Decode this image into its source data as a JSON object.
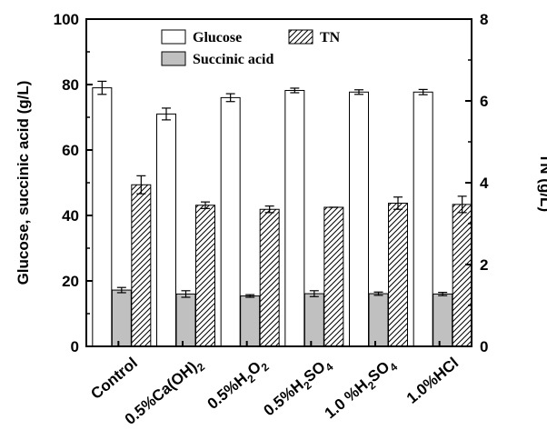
{
  "chart_data": {
    "type": "bar",
    "categories": [
      {
        "parts": [
          {
            "t": "Control"
          }
        ]
      },
      {
        "parts": [
          {
            "t": "0.5%Ca(OH)"
          },
          {
            "t": "2",
            "sub": true
          }
        ]
      },
      {
        "parts": [
          {
            "t": "0.5%H"
          },
          {
            "t": "2",
            "sub": true
          },
          {
            "t": "O"
          },
          {
            "t": "2",
            "sub": true
          }
        ]
      },
      {
        "parts": [
          {
            "t": "0.5%H"
          },
          {
            "t": "2",
            "sub": true
          },
          {
            "t": "SO"
          },
          {
            "t": "4",
            "sub": true
          }
        ]
      },
      {
        "parts": [
          {
            "t": "1.0 %H"
          },
          {
            "t": "2",
            "sub": true
          },
          {
            "t": "SO"
          },
          {
            "t": "4",
            "sub": true
          }
        ]
      },
      {
        "parts": [
          {
            "t": "1.0%HCl"
          }
        ]
      }
    ],
    "series": [
      {
        "name": "Glucose",
        "axis": "left",
        "fill": "#ffffff",
        "pattern": "none",
        "values": [
          79.0,
          71.0,
          76.0,
          78.2,
          77.7,
          77.7
        ],
        "errors": [
          2.0,
          1.8,
          1.2,
          0.7,
          0.7,
          0.8
        ]
      },
      {
        "name": "Succinic acid",
        "axis": "left",
        "fill": "#c0c0c0",
        "pattern": "none",
        "values": [
          17.2,
          16.0,
          15.4,
          16.1,
          16.1,
          16.0
        ],
        "errors": [
          0.8,
          1.0,
          0.4,
          0.9,
          0.5,
          0.5
        ]
      },
      {
        "name": "TN",
        "axis": "right",
        "fill": "#ffffff",
        "pattern": "hatch",
        "values": [
          3.95,
          3.45,
          3.35,
          3.4,
          3.5,
          3.47
        ],
        "errors": [
          0.22,
          0.08,
          0.08,
          0.0,
          0.15,
          0.2
        ]
      }
    ],
    "ylabel": "Glucose, succinic acid (g/L)",
    "y2label": "TN (g/L)",
    "ylim": [
      0,
      100
    ],
    "y2lim": [
      0,
      8
    ],
    "yticks": [
      "0",
      "20",
      "40",
      "60",
      "80",
      "100"
    ],
    "y2ticks": [
      "0",
      "2",
      "4",
      "6",
      "8"
    ],
    "legend": {
      "placement": "top-center",
      "glucose_label": "Glucose",
      "tn_label": "TN",
      "succinic_label": "Succinic acid"
    }
  }
}
